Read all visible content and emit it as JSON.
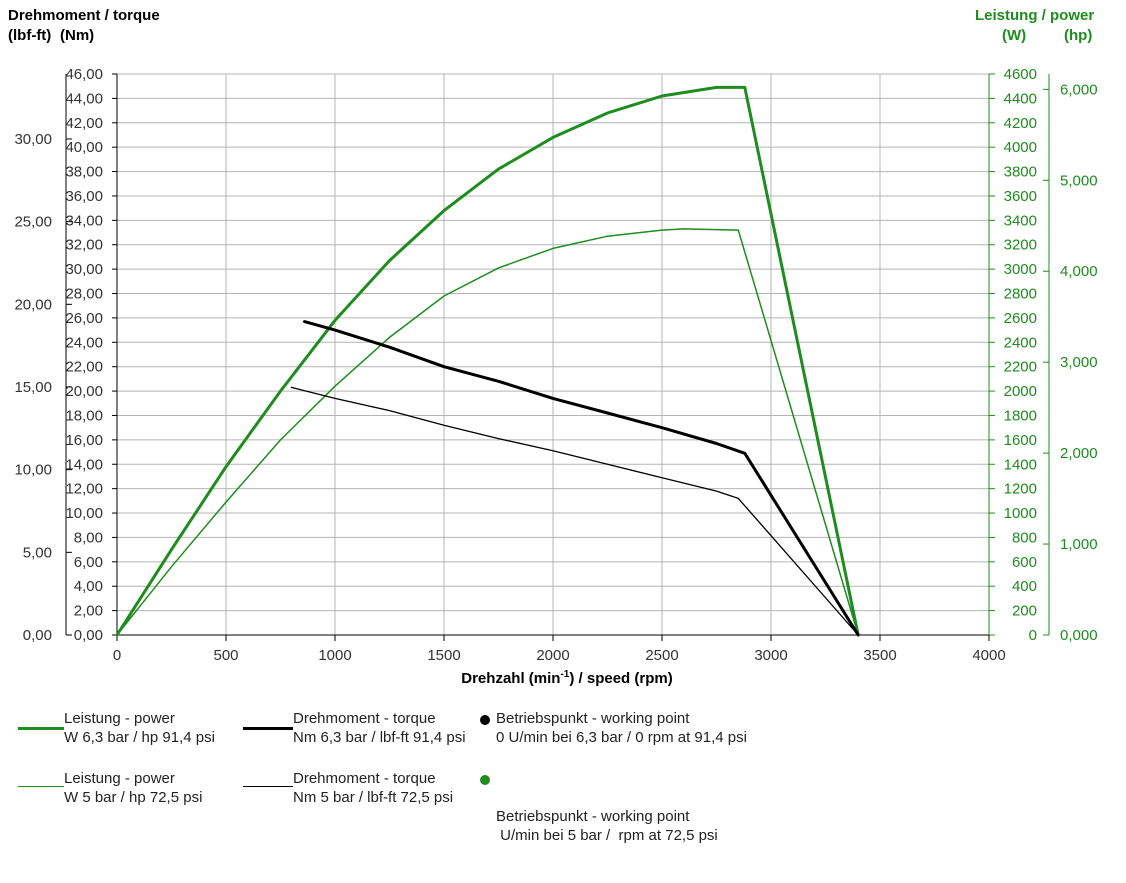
{
  "header": {
    "left_line1": "Drehmoment / torque",
    "left_unit_lbfft": "(lbf-ft)",
    "left_unit_nm": "(Nm)",
    "right_line1": "Leistung / power",
    "right_unit_w": "(W)",
    "right_unit_hp": "(hp)"
  },
  "colors": {
    "green": "#1e8c1e",
    "black": "#000000",
    "grid": "#b4b4b4"
  },
  "chart_data": {
    "type": "line",
    "xlabel_pre": "Drehzahl (min",
    "xlabel_sup": "-1",
    "xlabel_post": ") / speed (rpm)",
    "xlim": [
      0,
      4000
    ],
    "x_ticks": [
      "0",
      "500",
      "1000",
      "1500",
      "2000",
      "2500",
      "3000",
      "3500",
      "4000"
    ],
    "y_nm": {
      "lim": [
        0,
        46
      ],
      "ticks": [
        "0,00",
        "2,00",
        "4,00",
        "6,00",
        "8,00",
        "10,00",
        "12,00",
        "14,00",
        "16,00",
        "18,00",
        "20,00",
        "22,00",
        "24,00",
        "26,00",
        "28,00",
        "30,00",
        "32,00",
        "34,00",
        "36,00",
        "38,00",
        "40,00",
        "42,00",
        "44,00",
        "46,00"
      ]
    },
    "y_lbfft": {
      "lim": [
        0,
        33.93
      ],
      "ticks": [
        {
          "v": 0,
          "label": "0,00"
        },
        {
          "v": 5,
          "label": "5,00"
        },
        {
          "v": 10,
          "label": "10,00"
        },
        {
          "v": 15,
          "label": "15,00"
        },
        {
          "v": 20,
          "label": "20,00"
        },
        {
          "v": 25,
          "label": "25,00"
        },
        {
          "v": 30,
          "label": "30,00"
        }
      ]
    },
    "y_w": {
      "lim": [
        0,
        4600
      ],
      "ticks": [
        "0",
        "200",
        "400",
        "600",
        "800",
        "1000",
        "1200",
        "1400",
        "1600",
        "1800",
        "2000",
        "2200",
        "2400",
        "2600",
        "2800",
        "3000",
        "3200",
        "3400",
        "3600",
        "3800",
        "4000",
        "4200",
        "4400",
        "4600"
      ]
    },
    "y_hp": {
      "lim": [
        0,
        6168.7
      ],
      "ticks": [
        {
          "v": 0,
          "label": "0,000"
        },
        {
          "v": 1000,
          "label": "1,000"
        },
        {
          "v": 2000,
          "label": "2,000"
        },
        {
          "v": 3000,
          "label": "3,000"
        },
        {
          "v": 4000,
          "label": "4,000"
        },
        {
          "v": 5000,
          "label": "5,000"
        },
        {
          "v": 6000,
          "label": "6,000"
        }
      ]
    },
    "series": [
      {
        "axis": "power",
        "color": "#1e8c1e",
        "width": 3,
        "points": [
          [
            0,
            0
          ],
          [
            250,
            700
          ],
          [
            500,
            1380
          ],
          [
            750,
            2000
          ],
          [
            1000,
            2580
          ],
          [
            1250,
            3070
          ],
          [
            1500,
            3480
          ],
          [
            1750,
            3820
          ],
          [
            2000,
            4080
          ],
          [
            2250,
            4280
          ],
          [
            2500,
            4420
          ],
          [
            2750,
            4490
          ],
          [
            2880,
            4490
          ],
          [
            3400,
            0
          ]
        ]
      },
      {
        "axis": "power",
        "color": "#1e8c1e",
        "width": 1.5,
        "points": [
          [
            0,
            0
          ],
          [
            250,
            560
          ],
          [
            500,
            1090
          ],
          [
            750,
            1600
          ],
          [
            1000,
            2040
          ],
          [
            1250,
            2440
          ],
          [
            1500,
            2780
          ],
          [
            1750,
            3010
          ],
          [
            2000,
            3170
          ],
          [
            2250,
            3270
          ],
          [
            2500,
            3320
          ],
          [
            2600,
            3330
          ],
          [
            2850,
            3320
          ],
          [
            3400,
            0
          ]
        ]
      },
      {
        "axis": "torque",
        "color": "#000000",
        "width": 3,
        "points": [
          [
            860,
            25.7
          ],
          [
            1000,
            25.0
          ],
          [
            1250,
            23.6
          ],
          [
            1500,
            22.0
          ],
          [
            1750,
            20.8
          ],
          [
            2000,
            19.4
          ],
          [
            2250,
            18.2
          ],
          [
            2500,
            17.0
          ],
          [
            2750,
            15.7
          ],
          [
            2880,
            14.9
          ],
          [
            3400,
            0
          ]
        ]
      },
      {
        "axis": "torque",
        "color": "#000000",
        "width": 1.3,
        "points": [
          [
            800,
            20.3
          ],
          [
            1000,
            19.4
          ],
          [
            1250,
            18.4
          ],
          [
            1500,
            17.2
          ],
          [
            1750,
            16.1
          ],
          [
            2000,
            15.1
          ],
          [
            2250,
            14.0
          ],
          [
            2500,
            12.9
          ],
          [
            2750,
            11.8
          ],
          [
            2850,
            11.2
          ],
          [
            3400,
            0
          ]
        ]
      }
    ]
  },
  "legend": [
    {
      "line1": "Leistung - power",
      "line2": "W 6,3 bar / hp 91,4 psi"
    },
    {
      "line1": "Drehmoment - torque",
      "line2": "Nm 6,3 bar / lbf-ft 91,4 psi"
    },
    {
      "line1": "Betriebspunkt - working point",
      "line2": "0 U/min bei 6,3 bar / 0 rpm at 91,4 psi"
    },
    {
      "line1": "Leistung - power",
      "line2": "W 5 bar / hp 72,5 psi"
    },
    {
      "line1": "Drehmoment - torque",
      "line2": "Nm 5 bar / lbf-ft 72,5 psi"
    },
    {
      "line1": "Betriebspunkt - working point",
      "line2": " U/min bei 5 bar /  rpm at 72,5 psi"
    }
  ]
}
